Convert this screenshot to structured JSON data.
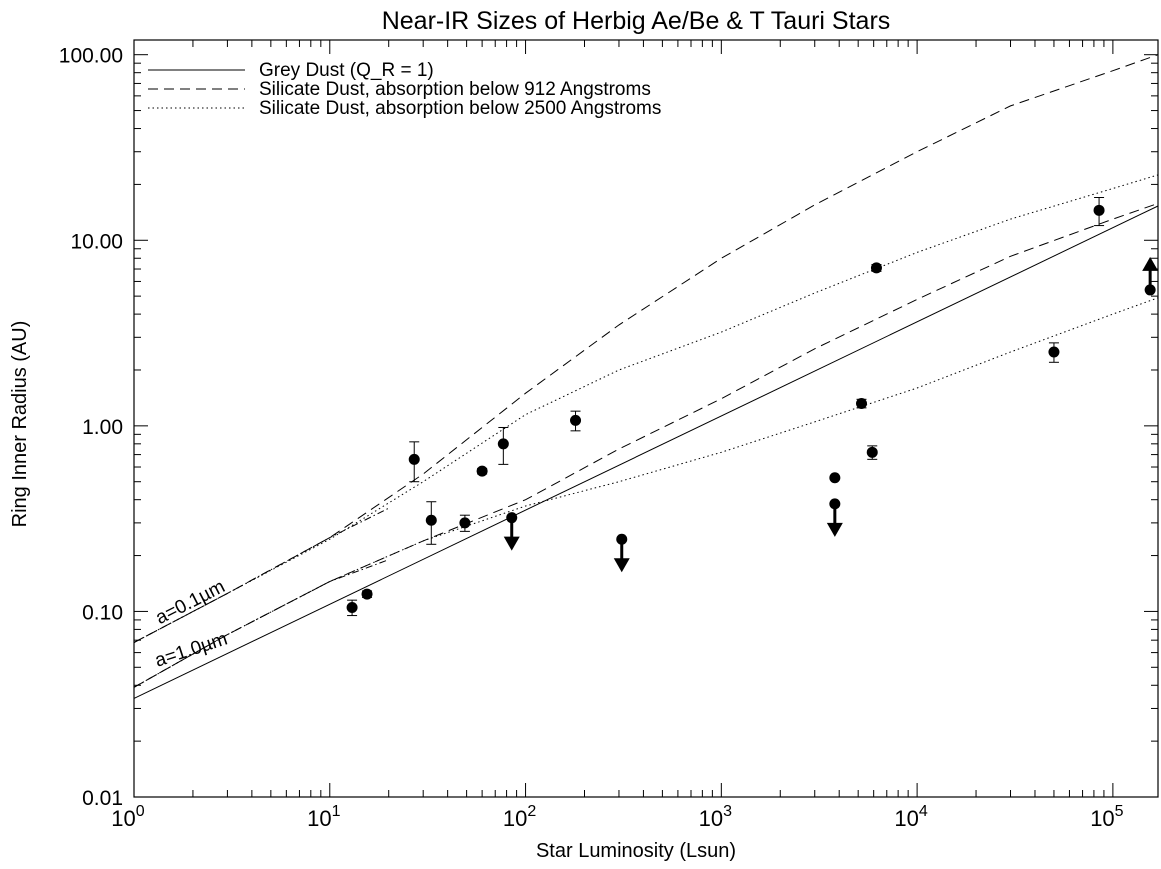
{
  "chart_data": {
    "type": "scatter",
    "title": "Near-IR Sizes of Herbig Ae/Be & T Tauri Stars",
    "xlabel": "Star Luminosity (Lsun)",
    "ylabel": "Ring Inner Radius (AU)",
    "xscale": "log",
    "yscale": "log",
    "xlim": [
      1,
      170000
    ],
    "ylim": [
      0.01,
      120
    ],
    "x_tick_labels": [
      {
        "base": "10",
        "exp": "0",
        "value": 1
      },
      {
        "base": "10",
        "exp": "1",
        "value": 10
      },
      {
        "base": "10",
        "exp": "2",
        "value": 100
      },
      {
        "base": "10",
        "exp": "3",
        "value": 1000
      },
      {
        "base": "10",
        "exp": "4",
        "value": 10000
      },
      {
        "base": "10",
        "exp": "5",
        "value": 100000
      }
    ],
    "y_tick_labels": [
      {
        "label": "0.01",
        "value": 0.01
      },
      {
        "label": "0.10",
        "value": 0.1
      },
      {
        "label": "1.00",
        "value": 1
      },
      {
        "label": "10.00",
        "value": 10
      },
      {
        "label": "100.00",
        "value": 100
      }
    ],
    "legend_position": "top-left",
    "series": [
      {
        "name": "Grey Dust (Q_R = 1)",
        "style": "solid",
        "x": [
          1,
          170000
        ],
        "y": [
          0.034,
          15.3
        ]
      },
      {
        "name": "Silicate Dust, absorption below 912 Angstroms",
        "style": "dashed",
        "x": [
          1,
          3,
          10,
          30,
          100,
          300,
          1000,
          3000,
          10000,
          30000,
          100000,
          170000
        ],
        "y": [
          0.068,
          0.125,
          0.25,
          0.55,
          1.5,
          3.5,
          8.0,
          15.5,
          30.0,
          53.0,
          82.0,
          100.0
        ]
      },
      {
        "name": "Silicate Dust, absorption below 2500 Angstroms",
        "style": "dotted",
        "x": [
          1,
          3,
          10,
          30,
          100,
          300,
          1000,
          3000,
          10000,
          30000,
          100000,
          170000
        ],
        "y": [
          0.068,
          0.125,
          0.245,
          0.5,
          1.15,
          2.0,
          3.2,
          5.2,
          8.6,
          13.0,
          19.0,
          22.5
        ]
      },
      {
        "name": "",
        "style": "dashed",
        "x": [
          1,
          3,
          10,
          30,
          100,
          300,
          1000,
          3000,
          10000,
          30000,
          100000,
          170000
        ],
        "y": [
          0.039,
          0.075,
          0.145,
          0.24,
          0.4,
          0.75,
          1.4,
          2.6,
          4.8,
          8.2,
          13.0,
          15.8
        ]
      },
      {
        "name": "",
        "style": "dotted",
        "x": [
          1,
          3,
          10,
          30,
          100,
          300,
          1000,
          3000,
          10000,
          30000,
          100000,
          170000
        ],
        "y": [
          0.039,
          0.075,
          0.145,
          0.24,
          0.37,
          0.5,
          0.72,
          1.05,
          1.6,
          2.5,
          4.0,
          4.9
        ]
      },
      {
        "name": "",
        "style": "dashdot",
        "x": [
          1,
          3,
          10,
          20
        ],
        "y": [
          0.068,
          0.125,
          0.25,
          0.36
        ]
      },
      {
        "name": "",
        "style": "dashdot",
        "x": [
          1,
          3,
          10,
          20
        ],
        "y": [
          0.039,
          0.075,
          0.145,
          0.19
        ]
      }
    ],
    "points": [
      {
        "x": 13,
        "y": 0.105,
        "err": [
          0.095,
          0.115
        ]
      },
      {
        "x": 15.5,
        "y": 0.124,
        "err": [
          0.119,
          0.129
        ]
      },
      {
        "x": 27,
        "y": 0.66,
        "err": [
          0.5,
          0.82
        ]
      },
      {
        "x": 33,
        "y": 0.31,
        "err": [
          0.23,
          0.39
        ]
      },
      {
        "x": 49,
        "y": 0.3,
        "err": [
          0.27,
          0.33
        ]
      },
      {
        "x": 60,
        "y": 0.57,
        "err": [
          0.55,
          0.59
        ]
      },
      {
        "x": 77,
        "y": 0.8,
        "err": [
          0.62,
          0.98
        ]
      },
      {
        "x": 85,
        "y": 0.32,
        "limit": "upper"
      },
      {
        "x": 180,
        "y": 1.07,
        "err": [
          0.94,
          1.2
        ]
      },
      {
        "x": 310,
        "y": 0.245,
        "limit": "upper"
      },
      {
        "x": 3800,
        "y": 0.525
      },
      {
        "x": 3800,
        "y": 0.38,
        "limit": "upper"
      },
      {
        "x": 5200,
        "y": 1.32,
        "err": [
          1.25,
          1.39
        ]
      },
      {
        "x": 5900,
        "y": 0.72,
        "err": [
          0.66,
          0.78
        ]
      },
      {
        "x": 6200,
        "y": 7.1,
        "err": [
          6.8,
          7.4
        ]
      },
      {
        "x": 50000,
        "y": 2.5,
        "err": [
          2.2,
          2.8
        ]
      },
      {
        "x": 85000,
        "y": 14.5,
        "err": [
          12.0,
          17.0
        ]
      },
      {
        "x": 155000,
        "y": 5.4,
        "limit": "lower"
      }
    ],
    "annotations": [
      {
        "text": "a=0.1µm",
        "x": 2,
        "y": 0.105,
        "angle_deg": -27
      },
      {
        "text": "a=1.0µm",
        "x": 2,
        "y": 0.058,
        "angle_deg": -18
      }
    ]
  }
}
